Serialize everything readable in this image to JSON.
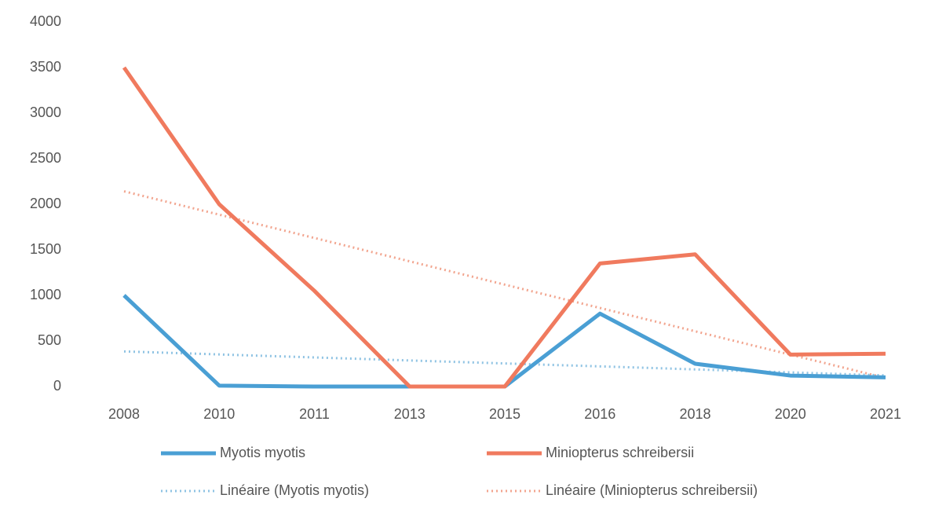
{
  "chart_data": {
    "type": "line",
    "categories": [
      "2008",
      "2010",
      "2011",
      "2013",
      "2015",
      "2016",
      "2018",
      "2020",
      "2021"
    ],
    "series": [
      {
        "name": "Myotis myotis",
        "color": "#4a9fd4",
        "style": "solid",
        "values": [
          1000,
          10,
          0,
          0,
          0,
          800,
          250,
          120,
          100
        ]
      },
      {
        "name": "Miniopterus schreibersii",
        "color": "#f07a5e",
        "style": "solid",
        "values": [
          3500,
          2000,
          1050,
          0,
          0,
          1350,
          1450,
          350,
          360
        ]
      },
      {
        "name": "Linéaire (Myotis myotis)",
        "color": "#8fc3e3",
        "style": "dotted",
        "values": [
          385,
          352,
          319,
          286,
          253,
          221,
          188,
          155,
          122
        ]
      },
      {
        "name": "Linéaire (Miniopterus schreibersii)",
        "color": "#f2a58f",
        "style": "dotted",
        "values": [
          2142,
          1886,
          1630,
          1374,
          1118,
          862,
          606,
          350,
          94
        ]
      }
    ],
    "ylim": [
      0,
      4000
    ],
    "yticks": [
      0,
      500,
      1000,
      1500,
      2000,
      2500,
      3000,
      3500,
      4000
    ],
    "grid": false
  }
}
